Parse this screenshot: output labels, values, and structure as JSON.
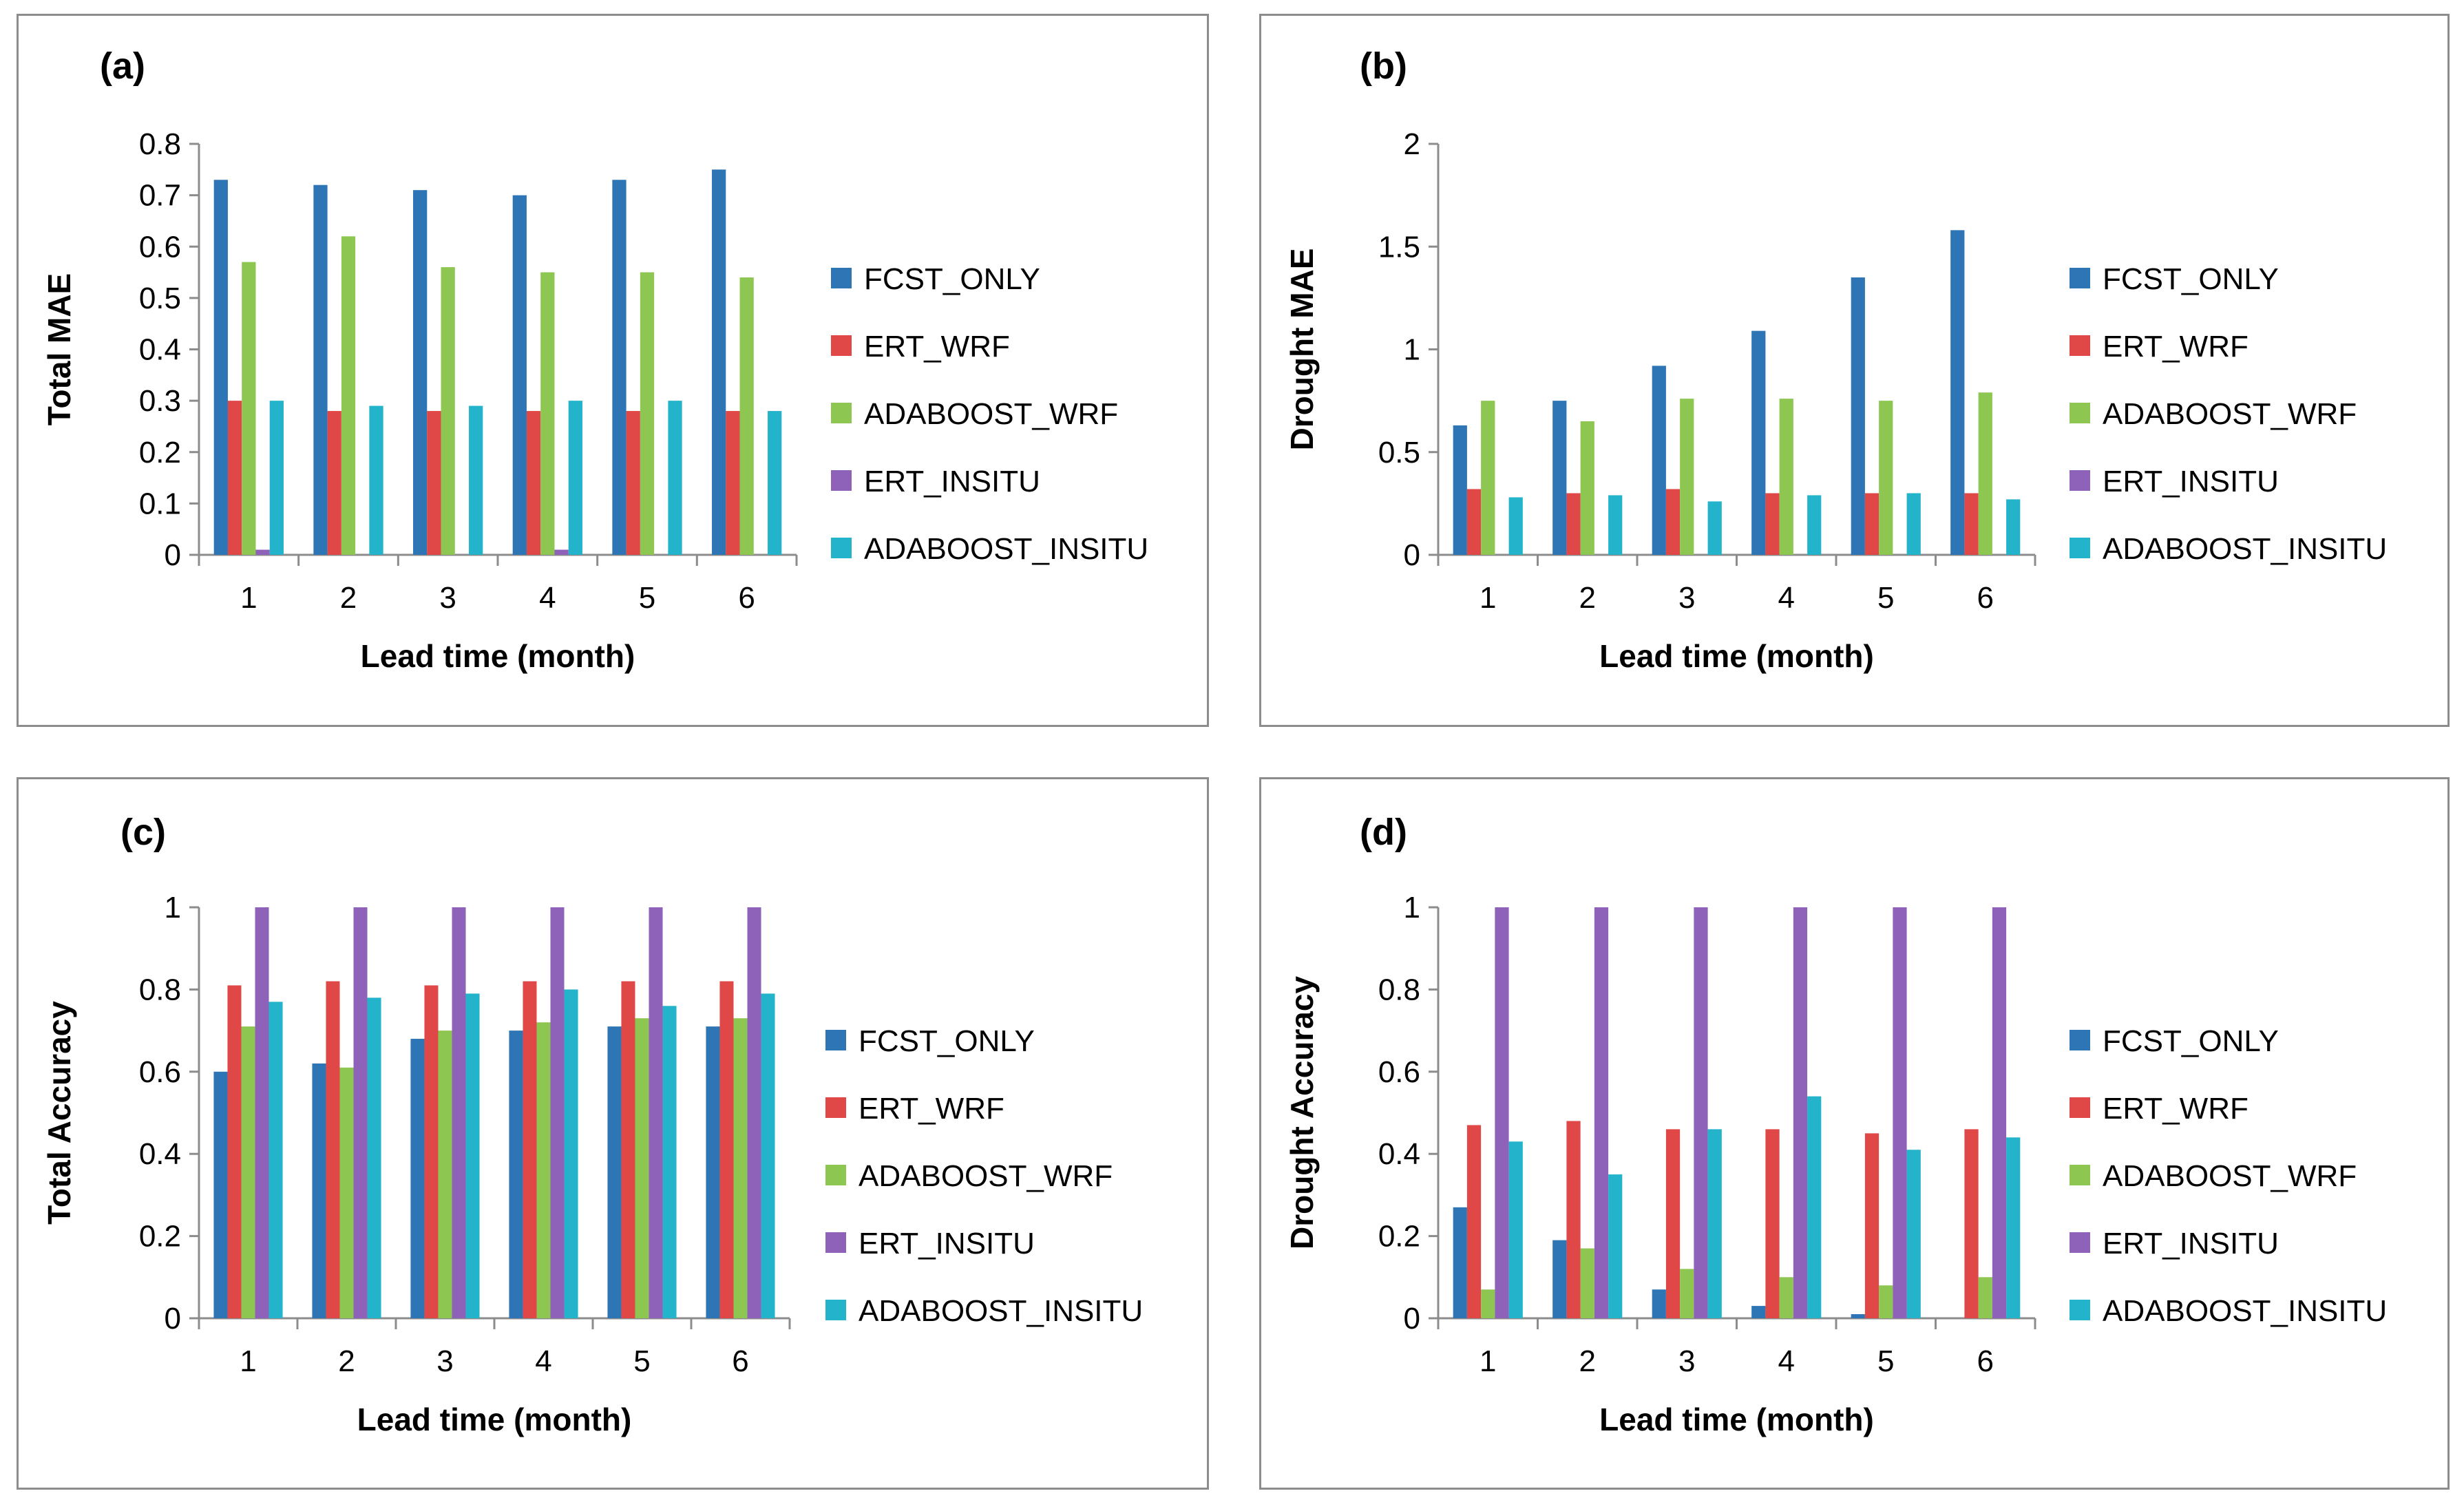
{
  "legend_colors": {
    "FCST_ONLY": "#2e75b6",
    "ERT_WRF": "#e04848",
    "ADABOOST_WRF": "#8dc651",
    "ERT_INSITU": "#8e62b8",
    "ADABOOST_INSITU": "#23b4cc"
  },
  "chart_data": [
    {
      "id": "a",
      "panel_label": "(a)",
      "type": "bar",
      "title": "",
      "xlabel": "Lead time (month)",
      "ylabel": "Total MAE",
      "categories": [
        "1",
        "2",
        "3",
        "4",
        "5",
        "6"
      ],
      "ylim": [
        0,
        0.8
      ],
      "yticks": [
        "0",
        "0.1",
        "0.2",
        "0.3",
        "0.4",
        "0.5",
        "0.6",
        "0.7",
        "0.8"
      ],
      "legend_position": "right",
      "series": [
        {
          "name": "FCST_ONLY",
          "values": [
            0.73,
            0.72,
            0.71,
            0.7,
            0.73,
            0.75
          ]
        },
        {
          "name": "ERT_WRF",
          "values": [
            0.3,
            0.28,
            0.28,
            0.28,
            0.28,
            0.28
          ]
        },
        {
          "name": "ADABOOST_WRF",
          "values": [
            0.57,
            0.62,
            0.56,
            0.55,
            0.55,
            0.54
          ]
        },
        {
          "name": "ERT_INSITU",
          "values": [
            0.01,
            0.0,
            0.0,
            0.01,
            0.0,
            0.0
          ]
        },
        {
          "name": "ADABOOST_INSITU",
          "values": [
            0.3,
            0.29,
            0.29,
            0.3,
            0.3,
            0.28
          ]
        }
      ]
    },
    {
      "id": "b",
      "panel_label": "(b)",
      "type": "bar",
      "title": "",
      "xlabel": "Lead time (month)",
      "ylabel": "Drought MAE",
      "categories": [
        "1",
        "2",
        "3",
        "4",
        "5",
        "6"
      ],
      "ylim": [
        0,
        2
      ],
      "yticks": [
        "0",
        "0.5",
        "1",
        "1.5",
        "2"
      ],
      "legend_position": "right",
      "series": [
        {
          "name": "FCST_ONLY",
          "values": [
            0.63,
            0.75,
            0.92,
            1.09,
            1.35,
            1.58
          ]
        },
        {
          "name": "ERT_WRF",
          "values": [
            0.32,
            0.3,
            0.32,
            0.3,
            0.3,
            0.3
          ]
        },
        {
          "name": "ADABOOST_WRF",
          "values": [
            0.75,
            0.65,
            0.76,
            0.76,
            0.75,
            0.79
          ]
        },
        {
          "name": "ERT_INSITU",
          "values": [
            0,
            0,
            0,
            0,
            0,
            0
          ]
        },
        {
          "name": "ADABOOST_INSITU",
          "values": [
            0.28,
            0.29,
            0.26,
            0.29,
            0.3,
            0.27
          ]
        }
      ]
    },
    {
      "id": "c",
      "panel_label": "(c)",
      "type": "bar",
      "title": "",
      "xlabel": "Lead time (month)",
      "ylabel": "Total Accuracy",
      "categories": [
        "1",
        "2",
        "3",
        "4",
        "5",
        "6"
      ],
      "ylim": [
        0,
        1
      ],
      "yticks": [
        "0",
        "0.2",
        "0.4",
        "0.6",
        "0.8",
        "1"
      ],
      "legend_position": "right",
      "series": [
        {
          "name": "FCST_ONLY",
          "values": [
            0.6,
            0.62,
            0.68,
            0.7,
            0.71,
            0.71
          ]
        },
        {
          "name": "ERT_WRF",
          "values": [
            0.81,
            0.82,
            0.81,
            0.82,
            0.82,
            0.82
          ]
        },
        {
          "name": "ADABOOST_WRF",
          "values": [
            0.71,
            0.61,
            0.7,
            0.72,
            0.73,
            0.73
          ]
        },
        {
          "name": "ERT_INSITU",
          "values": [
            1,
            1,
            1,
            1,
            1,
            1
          ]
        },
        {
          "name": "ADABOOST_INSITU",
          "values": [
            0.77,
            0.78,
            0.79,
            0.8,
            0.76,
            0.79
          ]
        }
      ]
    },
    {
      "id": "d",
      "panel_label": "(d)",
      "type": "bar",
      "title": "",
      "xlabel": "Lead time (month)",
      "ylabel": "Drought Accuracy",
      "categories": [
        "1",
        "2",
        "3",
        "4",
        "5",
        "6"
      ],
      "ylim": [
        0,
        1
      ],
      "yticks": [
        "0",
        "0.2",
        "0.4",
        "0.6",
        "0.8",
        "1"
      ],
      "legend_position": "right",
      "series": [
        {
          "name": "FCST_ONLY",
          "values": [
            0.27,
            0.19,
            0.07,
            0.03,
            0.01,
            0.0
          ]
        },
        {
          "name": "ERT_WRF",
          "values": [
            0.47,
            0.48,
            0.46,
            0.46,
            0.45,
            0.46
          ]
        },
        {
          "name": "ADABOOST_WRF",
          "values": [
            0.07,
            0.17,
            0.12,
            0.1,
            0.08,
            0.1
          ]
        },
        {
          "name": "ERT_INSITU",
          "values": [
            1,
            1,
            1,
            1,
            1,
            1
          ]
        },
        {
          "name": "ADABOOST_INSITU",
          "values": [
            0.43,
            0.35,
            0.46,
            0.54,
            0.41,
            0.44
          ]
        }
      ]
    }
  ]
}
